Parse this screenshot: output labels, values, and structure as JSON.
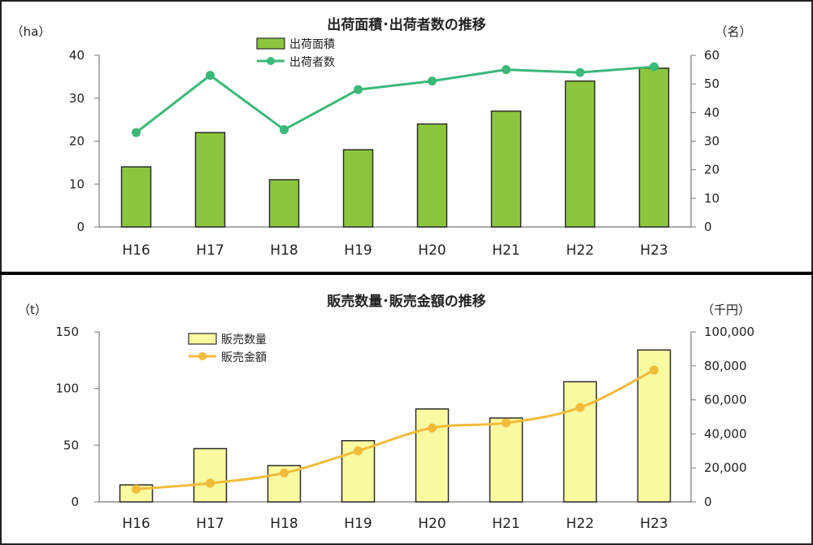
{
  "chart_data": [
    {
      "type": "bar+line",
      "title": "出荷面積･出荷者数の推移",
      "categories": [
        "H16",
        "H17",
        "H18",
        "H19",
        "H20",
        "H21",
        "H22",
        "H23"
      ],
      "left_unit": "（ha）",
      "right_unit": "（名）",
      "ylim_left": [
        0,
        40
      ],
      "ylim_right": [
        0,
        60
      ],
      "left_ticks": [
        0,
        10,
        20,
        30,
        40
      ],
      "right_ticks": [
        0,
        10,
        20,
        30,
        40,
        50,
        60
      ],
      "series": [
        {
          "name": "出荷面積",
          "kind": "bar",
          "axis": "left",
          "values": [
            14,
            22,
            11,
            18,
            24,
            27,
            34,
            37
          ]
        },
        {
          "name": "出荷者数",
          "kind": "line",
          "axis": "right",
          "values": [
            33,
            53,
            34,
            48,
            51,
            55,
            54,
            56
          ]
        }
      ],
      "colors": {
        "bar_fill": "#8cc63e",
        "bar_stroke": "#2d2d2d",
        "line": "#3cb879"
      },
      "legend_position": "top-center"
    },
    {
      "type": "bar+line",
      "title": "販売数量･販売金額の推移",
      "categories": [
        "H16",
        "H17",
        "H18",
        "H19",
        "H20",
        "H21",
        "H22",
        "H23"
      ],
      "left_unit": "（t）",
      "right_unit": "（千円）",
      "ylim_left": [
        0,
        150
      ],
      "ylim_right": [
        0,
        100000
      ],
      "left_ticks": [
        0,
        50,
        100,
        150
      ],
      "right_ticks": [
        0,
        20000,
        40000,
        60000,
        80000,
        100000
      ],
      "right_tick_labels": [
        "0",
        "20,000",
        "40,000",
        "60,000",
        "80,000",
        "100,000"
      ],
      "series": [
        {
          "name": "販売数量",
          "kind": "bar",
          "axis": "left",
          "values": [
            15,
            47,
            32,
            54,
            82,
            74,
            106,
            134
          ]
        },
        {
          "name": "販売金額",
          "kind": "line",
          "axis": "right",
          "values": [
            7500,
            11000,
            17000,
            30000,
            43500,
            46500,
            55500,
            77500
          ]
        }
      ],
      "colors": {
        "bar_fill": "#fafaa0",
        "bar_stroke": "#2d2d2d",
        "line": "#f2bb3a"
      },
      "legend_position": "top-center"
    }
  ]
}
